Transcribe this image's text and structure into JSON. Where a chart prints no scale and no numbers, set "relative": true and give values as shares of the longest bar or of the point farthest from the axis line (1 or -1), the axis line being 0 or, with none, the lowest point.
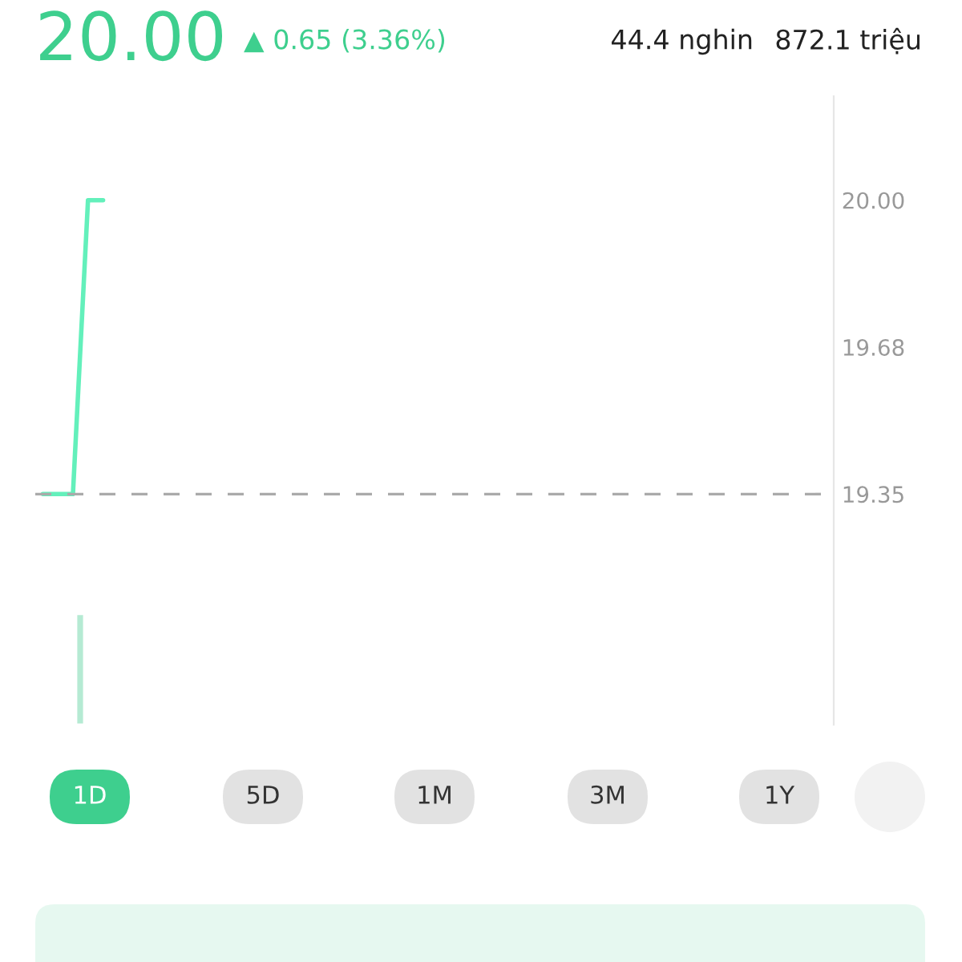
{
  "chart_data": [
    {
      "type": "line",
      "title": "20.00",
      "subtitle": "▲ 0.65 (3.36%)",
      "annotations": [
        "44.4 nghin",
        "872.1 triệu",
        "1D",
        "5D",
        "1M",
        "3M",
        "1Y"
      ],
      "categories": [
        null,
        null,
        null,
        null,
        null,
        null,
        null,
        null,
        null,
        null,
        null,
        null,
        null,
        null,
        null,
        null,
        null,
        null,
        null,
        null,
        null,
        null,
        null,
        null,
        null,
        null,
        null,
        null,
        null,
        null,
        null,
        null,
        null,
        null,
        null,
        null,
        null,
        null,
        null,
        null,
        null,
        null,
        null,
        null,
        null,
        null,
        null,
        null,
        null,
        null,
        null,
        null,
        null
      ],
      "series": [
        {
          "color": "#63f0bb",
          "values": [
            19.35,
            19.35,
            19.35,
            20.0,
            20.0,
            null,
            null,
            null,
            null,
            null,
            null,
            null,
            null,
            null,
            null,
            null,
            null,
            null,
            null,
            null,
            null,
            null,
            null,
            null,
            null,
            null,
            null,
            null,
            null,
            null,
            null,
            null,
            null,
            null,
            null,
            null,
            null,
            null,
            null,
            null,
            null,
            null,
            null,
            null,
            null,
            null,
            null,
            null,
            null,
            null,
            null,
            null,
            null
          ]
        }
      ],
      "ylim": [
        18.84,
        20.23
      ],
      "yticks": [
        {
          "value": 19.35,
          "label": "19.35"
        },
        {
          "value": 19.675,
          "label": "19.68"
        },
        {
          "value": 20.0,
          "label": "20.00"
        }
      ],
      "ref_lines": [
        {
          "axis": "y",
          "value": 19.35,
          "color": "#aaaaaa",
          "line_style": "dashed"
        }
      ],
      "tick_labels": "y",
      "grid": false,
      "legend": false
    },
    {
      "type": "bar",
      "relative": true,
      "tick_labels": false,
      "categories": [
        null
      ],
      "series": [
        {
          "color": "#b5ead3",
          "values": [
            1
          ]
        }
      ]
    }
  ]
}
